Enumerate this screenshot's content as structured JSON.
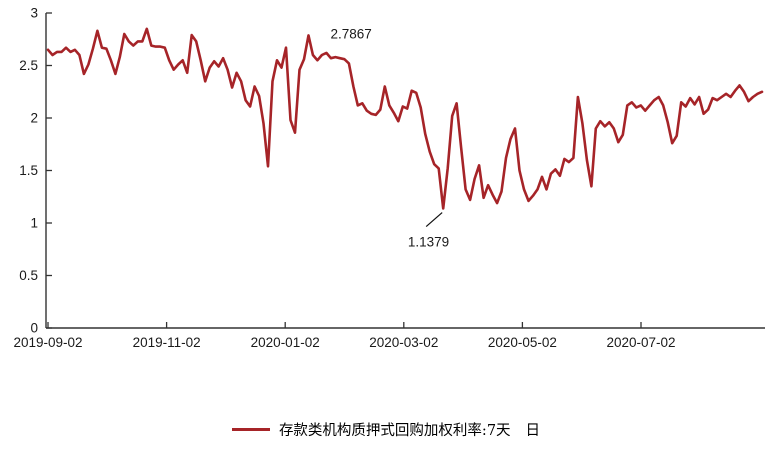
{
  "chart_data": {
    "type": "line",
    "title": "",
    "xlabel": "",
    "ylabel": "",
    "ylim": [
      0,
      3
    ],
    "yticks": [
      0,
      0.5,
      1,
      1.5,
      2,
      2.5,
      3
    ],
    "xtick_labels": [
      "2019-09-02",
      "2019-11-02",
      "2020-01-02",
      "2020-03-02",
      "2020-05-02",
      "2020-07-02"
    ],
    "x_start": "2019-09-02",
    "x_end": "2020-08-31",
    "grid": false,
    "legend_position": "bottom-center",
    "series": [
      {
        "name": "存款类机构质押式回购加权利率:7天",
        "frequency": "日",
        "color": "#A62428",
        "values": [
          2.65,
          2.6,
          2.63,
          2.63,
          2.67,
          2.63,
          2.65,
          2.6,
          2.42,
          2.51,
          2.66,
          2.83,
          2.67,
          2.66,
          2.55,
          2.42,
          2.58,
          2.8,
          2.73,
          2.69,
          2.73,
          2.73,
          2.85,
          2.69,
          2.68,
          2.68,
          2.67,
          2.55,
          2.46,
          2.51,
          2.55,
          2.43,
          2.79,
          2.73,
          2.55,
          2.35,
          2.48,
          2.54,
          2.49,
          2.57,
          2.46,
          2.29,
          2.43,
          2.35,
          2.17,
          2.11,
          2.3,
          2.21,
          1.95,
          1.54,
          2.35,
          2.55,
          2.48,
          2.67,
          1.98,
          1.86,
          2.46,
          2.56,
          2.7867,
          2.6,
          2.55,
          2.6,
          2.62,
          2.57,
          2.58,
          2.57,
          2.56,
          2.52,
          2.3,
          2.12,
          2.14,
          2.07,
          2.04,
          2.03,
          2.08,
          2.3,
          2.12,
          2.05,
          1.97,
          2.11,
          2.09,
          2.26,
          2.24,
          2.1,
          1.85,
          1.68,
          1.56,
          1.52,
          1.1379,
          1.52,
          2.02,
          2.14,
          1.72,
          1.32,
          1.22,
          1.42,
          1.55,
          1.24,
          1.36,
          1.27,
          1.19,
          1.3,
          1.62,
          1.8,
          1.9,
          1.5,
          1.32,
          1.21,
          1.26,
          1.32,
          1.44,
          1.32,
          1.47,
          1.51,
          1.45,
          1.61,
          1.58,
          1.62,
          2.2,
          1.95,
          1.6,
          1.35,
          1.9,
          1.97,
          1.92,
          1.96,
          1.9,
          1.77,
          1.84,
          2.12,
          2.15,
          2.1,
          2.12,
          2.07,
          2.12,
          2.17,
          2.2,
          2.12,
          1.96,
          1.76,
          1.83,
          2.15,
          2.11,
          2.19,
          2.13,
          2.2,
          2.04,
          2.08,
          2.19,
          2.17,
          2.2,
          2.23,
          2.2,
          2.26,
          2.31,
          2.25,
          2.16,
          2.2,
          2.23,
          2.25
        ]
      }
    ],
    "annotations": [
      {
        "label": "2.7867",
        "value": 2.7867,
        "point_index": 58,
        "placement": "right-of-peak",
        "leader": false
      },
      {
        "label": "1.1379",
        "value": 1.1379,
        "point_index": 88,
        "placement": "below-left",
        "leader": true
      }
    ]
  },
  "legend": {
    "label": "存款类机构质押式回购加权利率:7天",
    "freq": "日"
  },
  "colors": {
    "line": "#A62428",
    "axis": "#333333",
    "text": "#1a1a1a",
    "background": "#ffffff"
  }
}
